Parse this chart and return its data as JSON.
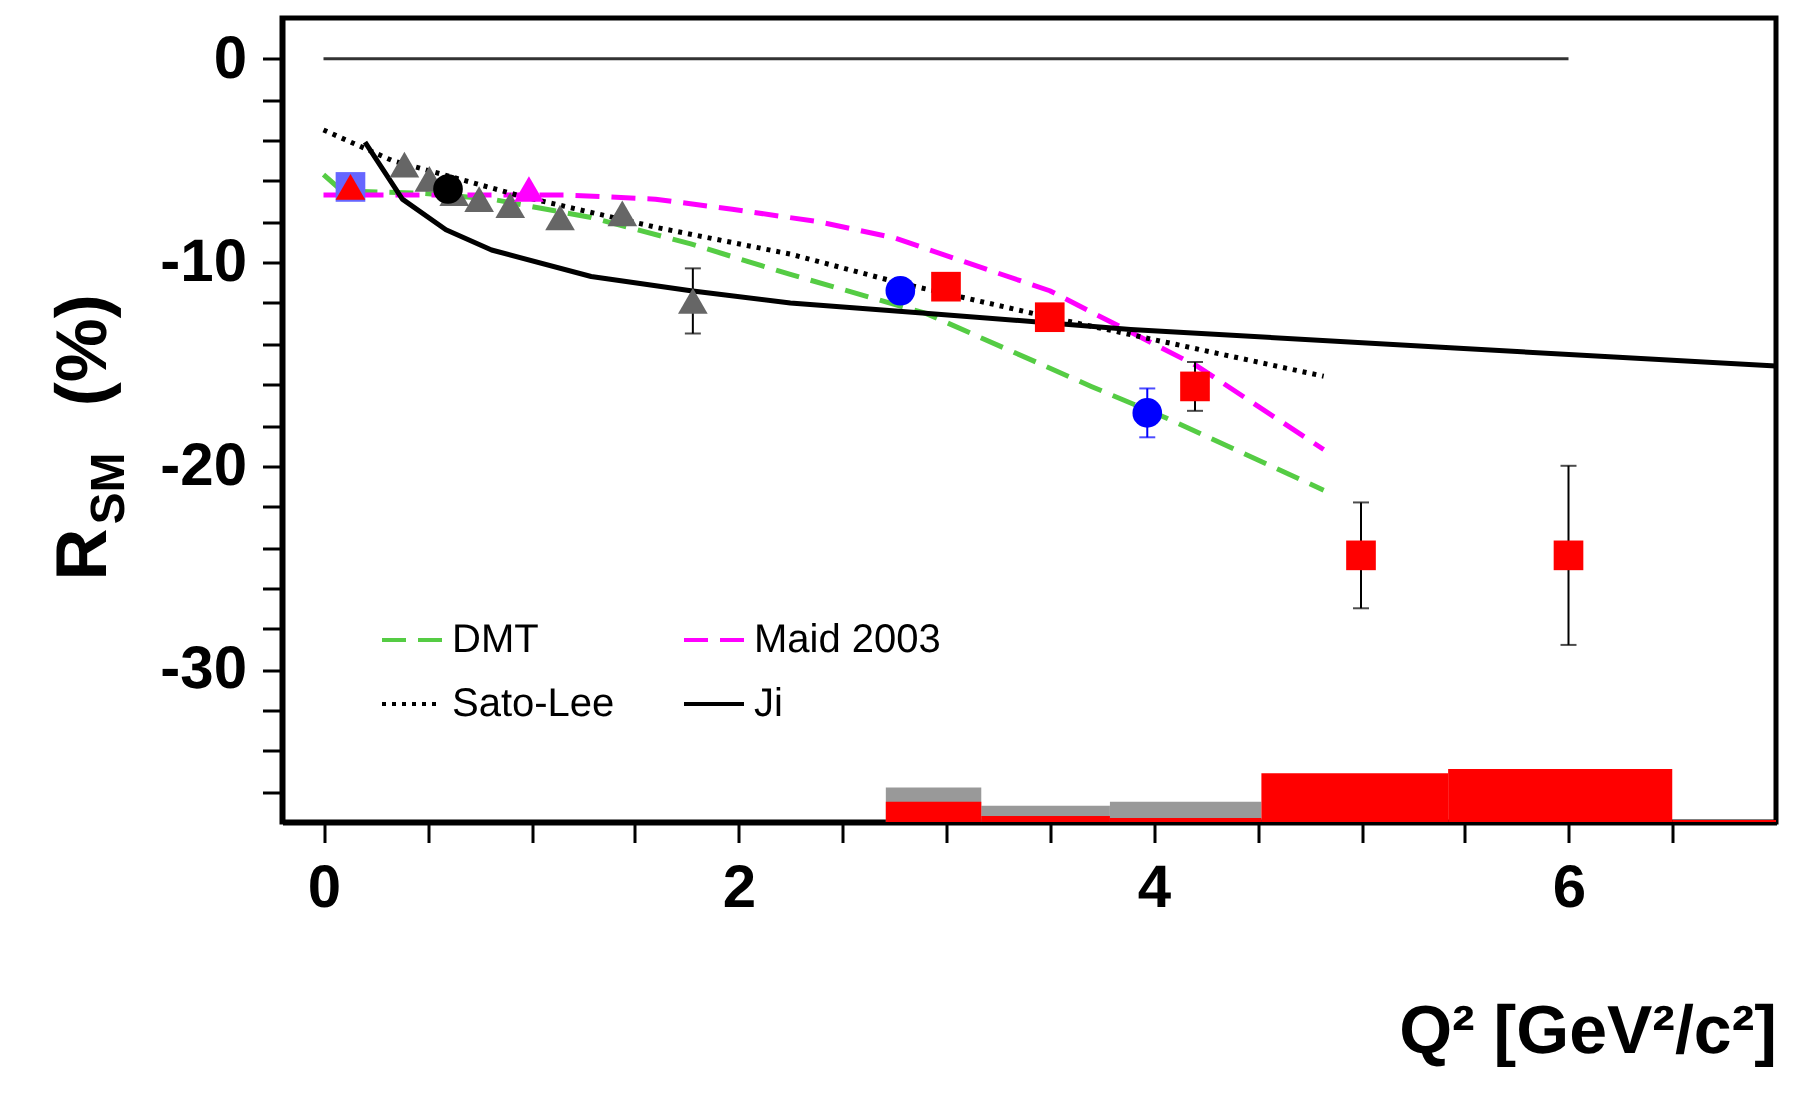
{
  "chart_data": {
    "type": "scatter",
    "xlabel": "Q² [GeV²/c²]",
    "ylabel": "R$_{SM}$ (%)",
    "xlim": [
      -0.2,
      7.0
    ],
    "ylim": [
      -37.5,
      2
    ],
    "xticks": [
      0,
      {
        "value": 0.5,
        "label": null
      },
      {
        "value": 1,
        "label": null
      },
      {
        "value": 1.5,
        "label": null
      },
      2,
      {
        "value": 2.5,
        "label": null
      },
      {
        "value": 3,
        "label": null
      },
      {
        "value": 3.5,
        "label": null
      },
      4,
      {
        "value": 4.5,
        "label": null
      },
      {
        "value": 5,
        "label": null
      },
      {
        "value": 5.5,
        "label": null
      },
      6,
      {
        "value": 6.5,
        "label": null
      }
    ],
    "yticks": [
      0,
      {
        "value": -2,
        "label": null
      },
      {
        "value": -4,
        "label": null
      },
      {
        "value": -6,
        "label": null
      },
      {
        "value": -8,
        "label": null
      },
      -10,
      {
        "value": -12,
        "label": null
      },
      {
        "value": -14,
        "label": null
      },
      {
        "value": -16,
        "label": null
      },
      {
        "value": -18,
        "label": null
      },
      -20,
      {
        "value": -22,
        "label": null
      },
      {
        "value": -24,
        "label": null
      },
      {
        "value": -26,
        "label": null
      },
      {
        "value": -28,
        "label": null
      },
      -30,
      {
        "value": -32,
        "label": null
      },
      {
        "value": -34,
        "label": null
      },
      {
        "value": -36,
        "label": null
      }
    ],
    "grid": false,
    "legend": "bottom left",
    "series": [
      {
        "type": "histogram",
        "color": "#999999",
        "bins": [
          2.71,
          3.17,
          3.79,
          4.52
        ],
        "base": [
          -37.5,
          -37.5,
          -37.5
        ],
        "values": [
          1.7,
          0.8,
          1.0
        ]
      },
      {
        "type": "histogram",
        "color": "#ff0000",
        "bins": [
          2.71,
          3.17,
          3.79,
          4.52,
          5.42,
          6.5,
          7.0
        ],
        "base": [
          -37.5,
          -37.5,
          -37.5,
          -37.5,
          -37.5,
          -37.5
        ],
        "values": [
          1.0,
          0.3,
          0.2,
          2.4,
          2.6,
          0.1
        ]
      },
      {
        "type": "line",
        "color": "#333333",
        "line_style": "solid",
        "x": [
          0,
          6
        ],
        "values": [
          0,
          0
        ]
      },
      {
        "type": "line",
        "name": "DMT",
        "color": "#55cc44",
        "line_style": "dashed",
        "x": [
          0,
          0.09,
          0.46,
          0.81,
          1.29,
          1.77,
          2.25,
          2.9,
          3.7,
          4.05,
          4.82
        ],
        "values": [
          -5.7,
          -6.5,
          -6.6,
          -6.9,
          -7.8,
          -9.1,
          -10.6,
          -12.5,
          -16.1,
          -17.6,
          -21.2
        ]
      },
      {
        "type": "line",
        "name": "Maid 2003",
        "color": "#ff00ff",
        "line_style": "dashed",
        "x": [
          0,
          1.18,
          1.6,
          1.97,
          2.38,
          2.75,
          3.5,
          4.21,
          4.82
        ],
        "values": [
          -6.7,
          -6.7,
          -6.9,
          -7.4,
          -8.0,
          -8.8,
          -11.4,
          -15.1,
          -19.2
        ]
      },
      {
        "type": "line",
        "name": "Sato-Lee",
        "color": "#000000",
        "line_style": "dotted",
        "x": [
          0,
          0.33,
          0.97,
          1.61,
          2.25,
          2.77,
          3.5,
          4.82
        ],
        "values": [
          -3.5,
          -5.0,
          -6.8,
          -8.3,
          -9.6,
          -11.0,
          -12.7,
          -15.6
        ]
      },
      {
        "type": "line",
        "name": "Ji",
        "color": "#000000",
        "line_style": "solid",
        "x": [
          0.2,
          0.38,
          0.59,
          0.81,
          1.29,
          1.77,
          2.25,
          2.9,
          3.89,
          5.43,
          7.0
        ],
        "values": [
          -4.1,
          -6.9,
          -8.4,
          -9.4,
          -10.7,
          -11.4,
          -12.0,
          -12.5,
          -13.3,
          -14.2,
          -15.1
        ]
      },
      {
        "color": "#666666",
        "marker": "triangle",
        "x": [
          0.39,
          0.51,
          0.63,
          0.75,
          0.9,
          1.14,
          1.44,
          1.78
        ],
        "values": [
          -5.2,
          -5.9,
          -6.6,
          -6.9,
          -7.2,
          -7.8,
          -7.6,
          -11.9
        ],
        "errors": [
          null,
          null,
          null,
          null,
          null,
          null,
          null,
          1.6
        ]
      },
      {
        "color": "#6666ff",
        "marker": "square",
        "x": [
          0.13
        ],
        "values": [
          -6.3
        ]
      },
      {
        "color": "#ff0000",
        "marker": "triangle",
        "x": [
          0.13
        ],
        "values": [
          -6.3
        ]
      },
      {
        "color": "#000000",
        "marker": "circle",
        "x": [
          0.6
        ],
        "values": [
          -6.4
        ]
      },
      {
        "color": "#ff00ff",
        "marker": "triangle",
        "x": [
          0.99
        ],
        "values": [
          -6.4
        ]
      },
      {
        "color": "#0000ff",
        "marker": "circle",
        "x": [
          2.78,
          3.97
        ],
        "values": [
          -11.4,
          -17.4
        ],
        "errors": [
          null,
          1.2
        ]
      },
      {
        "color": "#ff0000",
        "marker": "square",
        "x": [
          3.0,
          3.5,
          4.2,
          5.0,
          6.0
        ],
        "values": [
          -11.2,
          -12.7,
          -16.1,
          -24.4,
          -24.4
        ],
        "errors": [
          null,
          null,
          1.2,
          2.6,
          4.4
        ]
      }
    ]
  }
}
